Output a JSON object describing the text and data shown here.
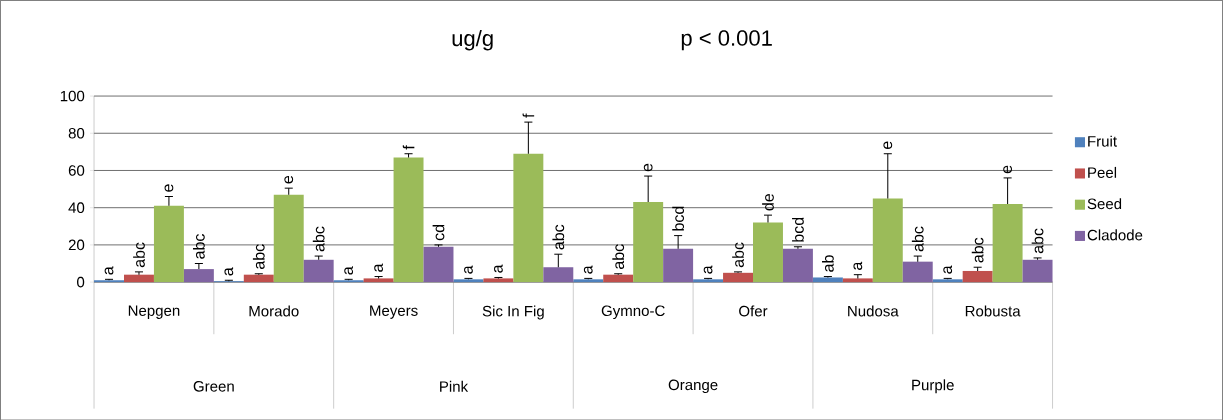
{
  "chart_data": {
    "type": "bar",
    "title": "ug/g",
    "subtitle": "p < 0.001",
    "categories": [
      "Nepgen",
      "Morado",
      "Meyers",
      "Sic In Fig",
      "Gymno-C",
      "Ofer",
      "Nudosa",
      "Robusta"
    ],
    "series": [
      {
        "name": "Fruit",
        "color": "#4f81bd",
        "values": [
          1,
          0.5,
          1,
          1.5,
          1.5,
          1.5,
          2.5,
          1.5
        ],
        "errors": [
          0.5,
          0.5,
          0.5,
          0.5,
          0.5,
          0.5,
          0.5,
          0.5
        ],
        "value_labels": [
          "a",
          "a",
          "a",
          "a",
          "a",
          "a",
          "ab",
          "a"
        ]
      },
      {
        "name": "Peel",
        "color": "#c0504d",
        "values": [
          4,
          4,
          2,
          2,
          4,
          5,
          2,
          6
        ],
        "errors": [
          1.5,
          0.5,
          1,
          0.5,
          0.5,
          0.5,
          2,
          2
        ],
        "value_labels": [
          "abc",
          "abc",
          "a",
          "a",
          "abc",
          "abc",
          "a",
          "abc"
        ]
      },
      {
        "name": "Seed",
        "color": "#9bbb59",
        "values": [
          41,
          47,
          67,
          69,
          43,
          32,
          45,
          42
        ],
        "errors": [
          5,
          3.5,
          2,
          17,
          14,
          4,
          24,
          14
        ],
        "value_labels": [
          "e",
          "e",
          "f",
          "f",
          "e",
          "de",
          "e",
          "e"
        ]
      },
      {
        "name": "Cladode",
        "color": "#8064a2",
        "values": [
          7,
          12,
          19,
          8,
          18,
          18,
          11,
          12
        ],
        "errors": [
          3,
          2,
          1,
          7,
          7,
          1,
          3,
          1
        ],
        "value_labels": [
          "abc",
          "abc",
          "cd",
          "abc",
          "bcd",
          "bcd",
          "abc",
          "abc"
        ]
      }
    ],
    "annotations": [
      "Green",
      "Pink",
      "Orange",
      "Purple"
    ],
    "ylim": [
      0,
      100
    ],
    "yticks": [
      0,
      20,
      40,
      60,
      80,
      100
    ],
    "grid": "y",
    "legend": "right"
  }
}
